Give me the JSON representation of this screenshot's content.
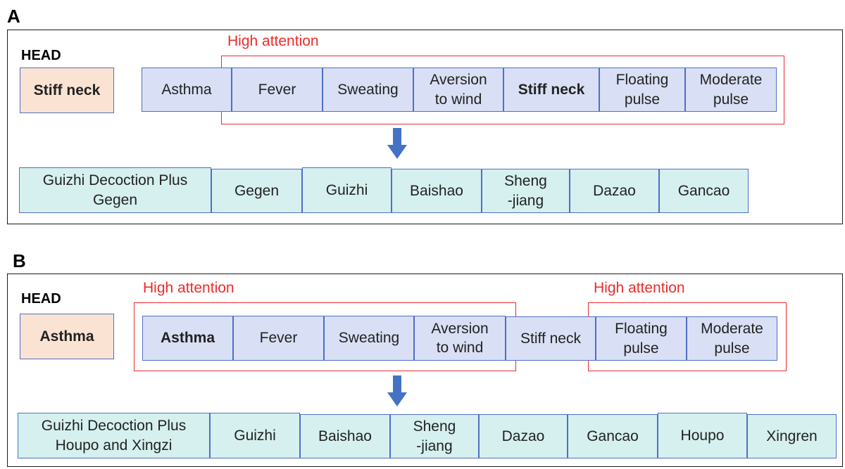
{
  "panel_a": {
    "letter": "A",
    "head_label": "HEAD",
    "head_cell": "Stiff neck",
    "attention_label": "High attention",
    "symptoms": [
      "Asthma",
      "Fever",
      "Sweating",
      "Aversion\nto wind",
      "Stiff neck",
      "Floating\npulse",
      "Moderate\npulse"
    ],
    "herbs": [
      "Guizhi Decoction Plus\nGegen",
      "Gegen",
      "Guizhi",
      "Baishao",
      "Sheng\n-jiang",
      "Dazao",
      "Gancao"
    ]
  },
  "panel_b": {
    "letter": "B",
    "head_label": "HEAD",
    "head_cell": "Asthma",
    "attention_label_1": "High attention",
    "attention_label_2": "High attention",
    "symptoms": [
      "Asthma",
      "Fever",
      "Sweating",
      "Aversion\nto wind",
      "Stiff neck",
      "Floating\npulse",
      "Moderate\npulse"
    ],
    "herbs": [
      "Guizhi Decoction Plus\nHoupo and Xingzi",
      "Guizhi",
      "Baishao",
      "Sheng\n-jiang",
      "Dazao",
      "Gancao",
      "Houpo",
      "Xingren"
    ]
  },
  "colors": {
    "symptom_fill": "#d9e0f5",
    "herb_fill": "#d5f0ef",
    "head_fill": "#fae3d3",
    "cell_border": "#4f6fc6",
    "attention": "#ee2b2b",
    "arrow": "#4472c4"
  }
}
